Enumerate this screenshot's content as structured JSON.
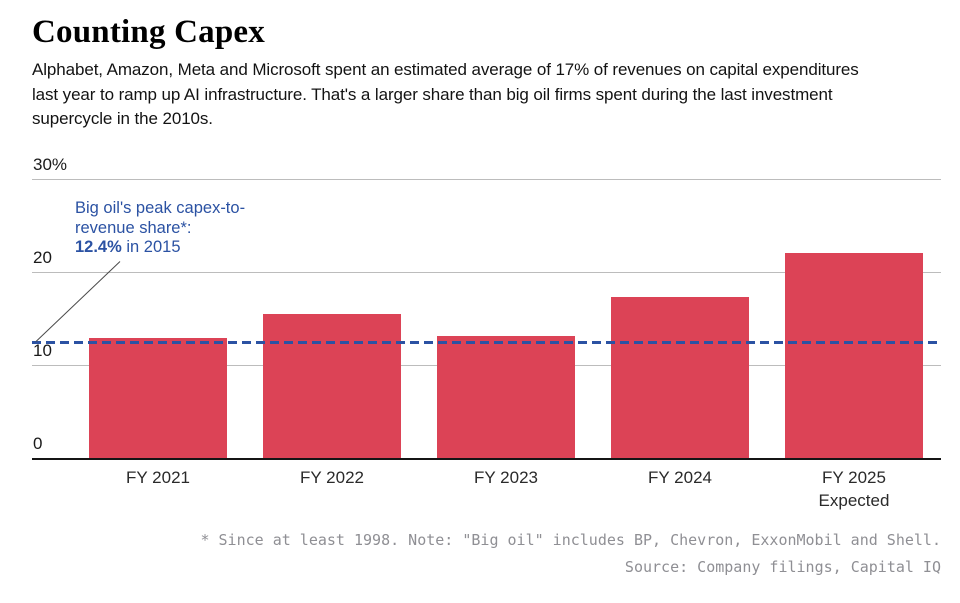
{
  "header": {
    "title": "Counting Capex",
    "subtitle_lines": [
      "Alphabet, Amazon, Meta and Microsoft spent an estimated average of 17% of revenues on capital expenditures",
      "last year to ramp up AI infrastructure. That's a larger share than big oil firms spent during the last investment",
      "supercycle in the 2010s."
    ]
  },
  "annotation": {
    "line1": "Big oil's peak capex-to-",
    "line2": "revenue share*:",
    "value_bold": "12.4%",
    "value_suffix": " in 2015"
  },
  "chart_data": {
    "type": "bar",
    "title": "Counting Capex",
    "categories": [
      "FY 2021",
      "FY 2022",
      "FY 2023",
      "FY 2024",
      "FY 2025"
    ],
    "category_sublabels": [
      "",
      "",
      "",
      "",
      "Expected"
    ],
    "values": [
      12.9,
      15.5,
      13.1,
      17.3,
      22.0
    ],
    "unit": "%",
    "ylim": [
      0,
      30
    ],
    "yticks": [
      {
        "value": 0,
        "label": "0"
      },
      {
        "value": 10,
        "label": "10"
      },
      {
        "value": 20,
        "label": "20"
      },
      {
        "value": 30,
        "label": "30%"
      }
    ],
    "grid": true,
    "legend": "none",
    "bar_color": "#dc4356",
    "gridline_color": "#bcbcbc",
    "reference_line": {
      "value": 12.4,
      "year": 2015,
      "label": "Big oil's peak capex-to-revenue share*: 12.4% in 2015",
      "color": "#2b52a3",
      "style": "dashed"
    }
  },
  "footer": {
    "note": "* Since at least 1998. Note: \"Big oil\" includes BP, Chevron, ExxonMobil and Shell.",
    "source": "Source: Company filings, Capital IQ"
  }
}
